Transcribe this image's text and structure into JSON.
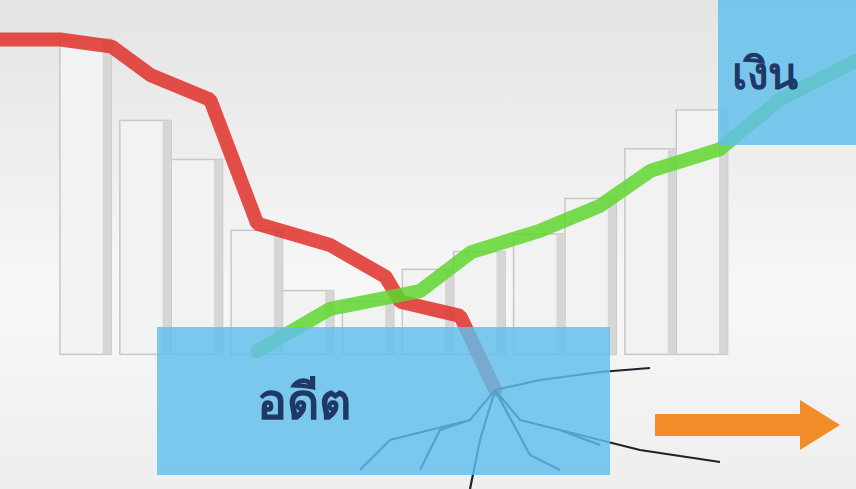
{
  "chart_data": {
    "type": "bar",
    "annotations": [
      "อดีต",
      "เงิน"
    ],
    "xlim": [
      0,
      100
    ],
    "ylim": [
      -38,
      100
    ],
    "tick_labels": false,
    "grid": false,
    "series": [
      {
        "type": "bar",
        "color": "#f2f2f2",
        "x": [
          10,
          17,
          23,
          30,
          36,
          43,
          50,
          56,
          63,
          69,
          76,
          82
        ],
        "values": [
          89,
          66,
          55,
          35,
          18,
          15,
          24,
          29,
          34,
          44,
          58,
          69
        ]
      },
      {
        "type": "line",
        "color": "#e0302a",
        "x": [
          0,
          7,
          13,
          17.5,
          24.5,
          30,
          38.5,
          45,
          46.7,
          53.7,
          57.8
        ],
        "values": [
          89,
          89,
          87,
          79,
          72,
          37,
          31,
          22,
          15,
          11,
          -10
        ]
      },
      {
        "type": "line",
        "color": "#5fd62f",
        "x": [
          30,
          38.5,
          49,
          55,
          63,
          70,
          76,
          84,
          91,
          100
        ],
        "values": [
          1,
          13,
          18,
          29,
          35,
          42,
          52,
          58,
          72,
          83
        ]
      }
    ]
  }
}
